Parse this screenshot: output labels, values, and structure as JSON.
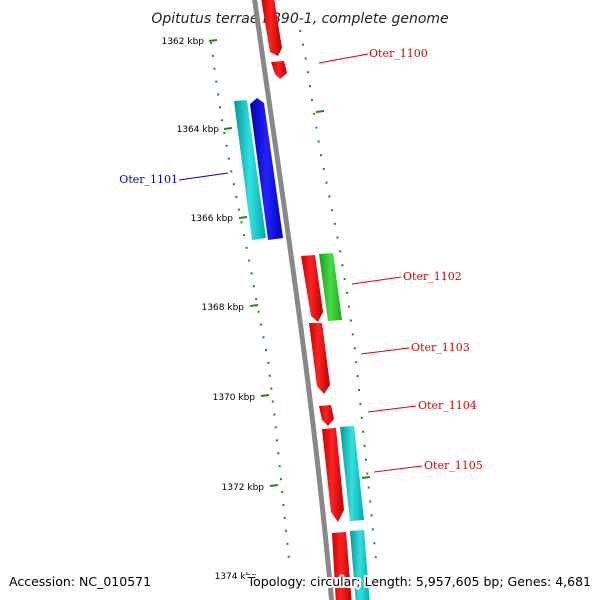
{
  "title": "Opitutus terrae PB90-1, complete genome",
  "accession": "Accession: NC_010571",
  "summary": "Topology: circular; Length: 5,957,605 bp; Genes: 4,681",
  "colors": {
    "backbone": "#888888",
    "tick": "#1a8a1a",
    "forward_label": "#dd0000",
    "reverse_label": "#0000cc",
    "red": "#ff0000",
    "green": "#33cc33",
    "cyan": "#00cccc",
    "blue": "#0000ff"
  },
  "scale_labels": [
    "1362 kbp",
    "1364 kbp",
    "1366 kbp",
    "1368 kbp",
    "1370 kbp",
    "1372 kbp",
    "1374 kbp"
  ],
  "genes": [
    {
      "name": "Oter_1100",
      "strand": "forward"
    },
    {
      "name": "Oter_1101",
      "strand": "reverse"
    },
    {
      "name": "Oter_1102",
      "strand": "forward"
    },
    {
      "name": "Oter_1103",
      "strand": "forward"
    },
    {
      "name": "Oter_1104",
      "strand": "forward"
    },
    {
      "name": "Oter_1105",
      "strand": "forward"
    }
  ]
}
